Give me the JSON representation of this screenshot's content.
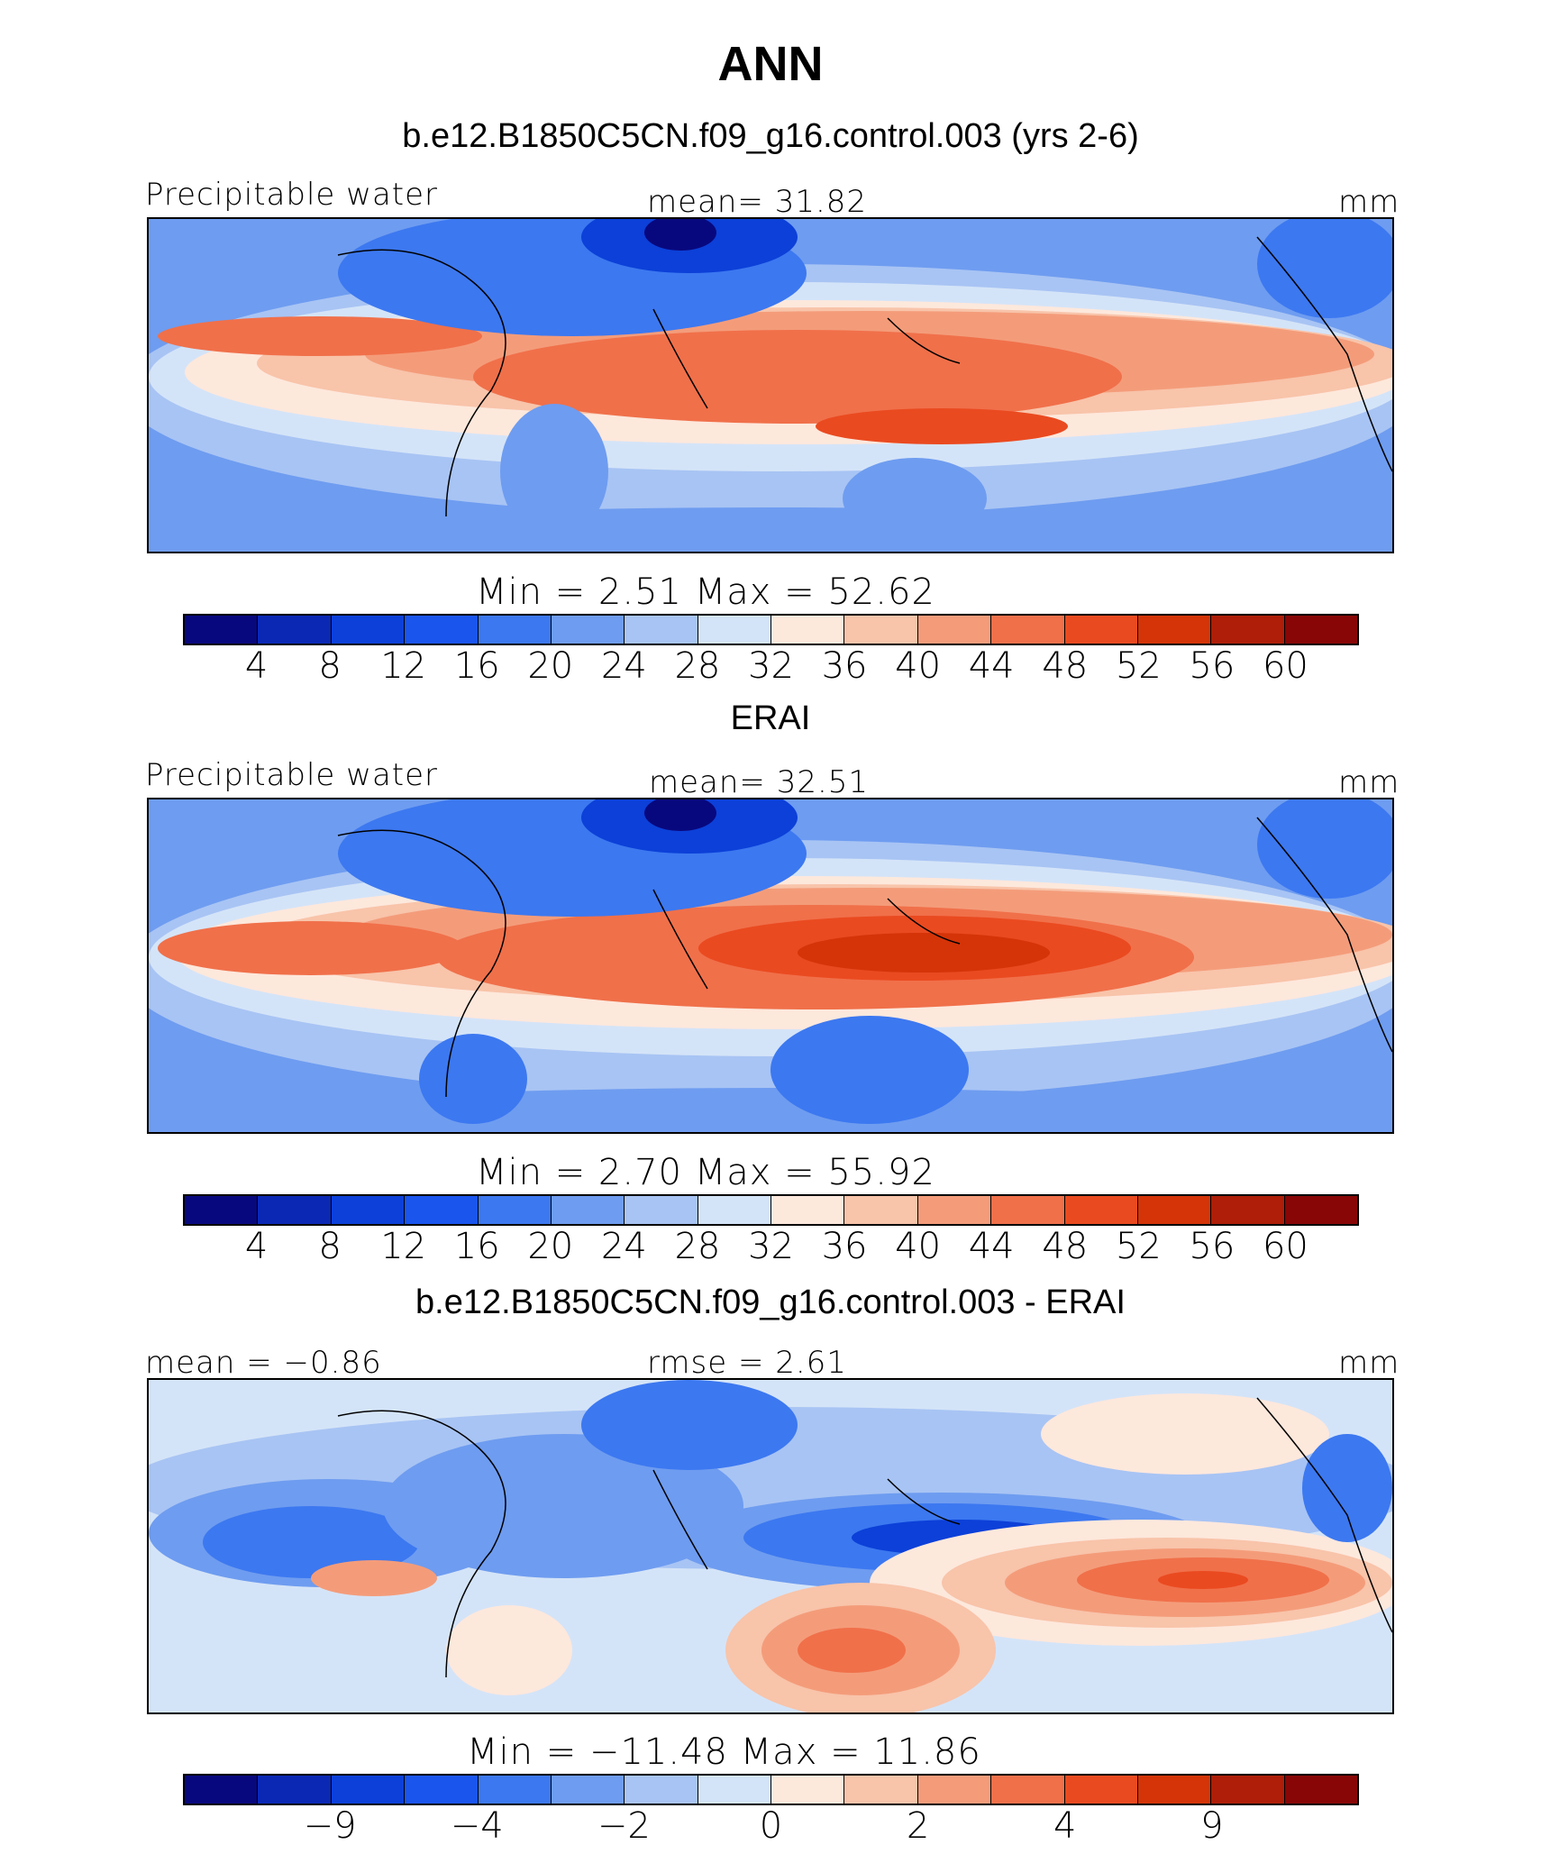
{
  "figure": {
    "title": "ANN"
  },
  "colors": [
    "#08087e",
    "#0a28b4",
    "#0c40d8",
    "#1a55ee",
    "#3c78f0",
    "#6e9cf0",
    "#a8c4f4",
    "#d4e4f8",
    "#fde8dc",
    "#f8c4aa",
    "#f49c7a",
    "#f0704a",
    "#ea4a20",
    "#d43408",
    "#ae1e08",
    "#880606"
  ],
  "chart_data": [
    {
      "type": "heatmap",
      "panel_title": "b.e12.B1850C5CN.f09_g16.control.003 (yrs 2-6)",
      "left_label": "Precipitable water",
      "center_label": "mean=   31.82",
      "units": "mm",
      "stats": "Min  =     2.51  Max  =    52.62",
      "min": 2.51,
      "max": 52.62,
      "mean": 31.82,
      "levels": [
        4,
        8,
        12,
        16,
        20,
        24,
        28,
        32,
        36,
        40,
        44,
        48,
        52,
        56,
        60
      ],
      "tick_labels": [
        "4",
        "8",
        "12",
        "16",
        "20",
        "24",
        "28",
        "32",
        "36",
        "40",
        "44",
        "48",
        "52",
        "56",
        "60"
      ]
    },
    {
      "type": "heatmap",
      "panel_title": "ERAI",
      "left_label": "Precipitable water",
      "center_label": "mean=   32.51",
      "units": "mm",
      "stats": "Min  =     2.70  Max  =    55.92",
      "min": 2.7,
      "max": 55.92,
      "mean": 32.51,
      "levels": [
        4,
        8,
        12,
        16,
        20,
        24,
        28,
        32,
        36,
        40,
        44,
        48,
        52,
        56,
        60
      ],
      "tick_labels": [
        "4",
        "8",
        "12",
        "16",
        "20",
        "24",
        "28",
        "32",
        "36",
        "40",
        "44",
        "48",
        "52",
        "56",
        "60"
      ]
    },
    {
      "type": "heatmap",
      "panel_title": "b.e12.B1850C5CN.f09_g16.control.003 - ERAI",
      "left_label": "mean =  −0.86",
      "center_label": "rmse =    2.61",
      "units": "mm",
      "stats": "Min  = −11.48  Max  =    11.86",
      "min": -11.48,
      "max": 11.86,
      "mean": -0.86,
      "rmse": 2.61,
      "levels": [
        -12,
        -9,
        -6,
        -4,
        -3,
        -2,
        -1,
        0,
        1,
        2,
        3,
        4,
        6,
        9,
        12
      ],
      "tick_labels": [
        "−9",
        "−4",
        "−2",
        "0",
        "2",
        "4",
        "9"
      ],
      "tick_levels": [
        -9,
        -4,
        -2,
        0,
        2,
        4,
        9
      ]
    }
  ]
}
